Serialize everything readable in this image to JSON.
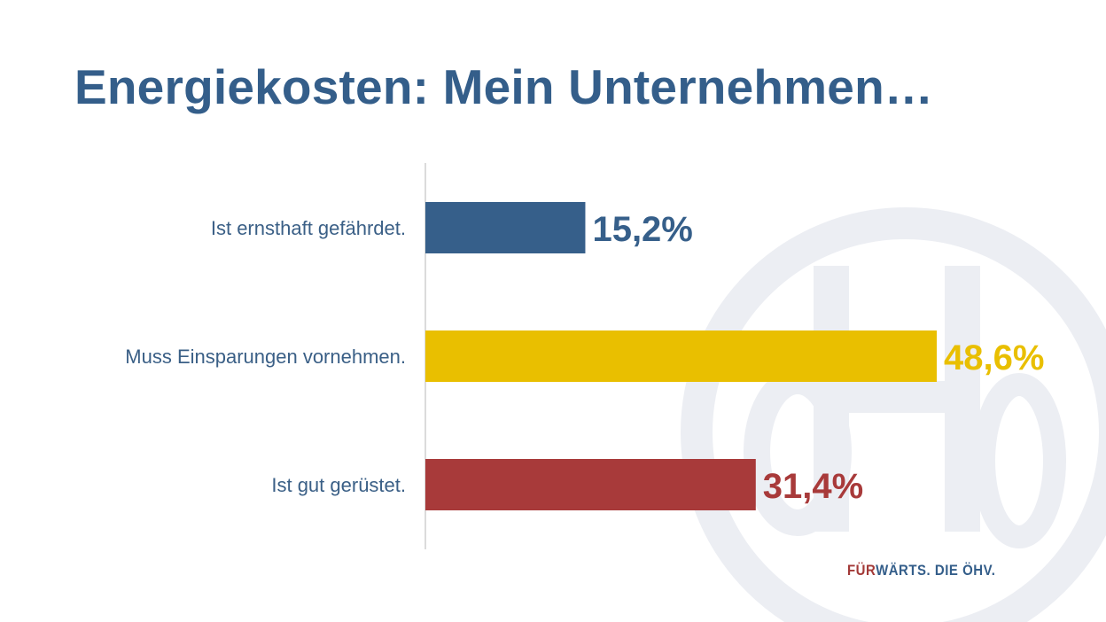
{
  "slide": {
    "title": "Energiekosten: Mein Unternehmen…",
    "footer_part1": "FÜR",
    "footer_part2": "WÄRTS. DIE ÖHV."
  },
  "colors": {
    "title": "#345e8a",
    "axis_line": "#cfcfcf",
    "watermark": "#eceef3",
    "footer_accent": "#a33a38",
    "footer_main": "#345e8a"
  },
  "chart_data": {
    "type": "bar",
    "orientation": "horizontal",
    "categories": [
      "Ist ernsthaft gefährdet.",
      "Muss Einsparungen vornehmen.",
      "Ist gut gerüstet."
    ],
    "values": [
      15.2,
      48.6,
      31.4
    ],
    "value_labels": [
      "15,2%",
      "48,6%",
      "31,4%"
    ],
    "bar_colors": [
      "#365f8a",
      "#e9bf00",
      "#a83a3a"
    ],
    "label_colors": [
      "#365f8a",
      "#e9bf00",
      "#a83a3a"
    ],
    "category_label_color": "#3a5f86",
    "xlim": [
      0,
      48.6
    ],
    "grid": false,
    "legend": "none"
  }
}
